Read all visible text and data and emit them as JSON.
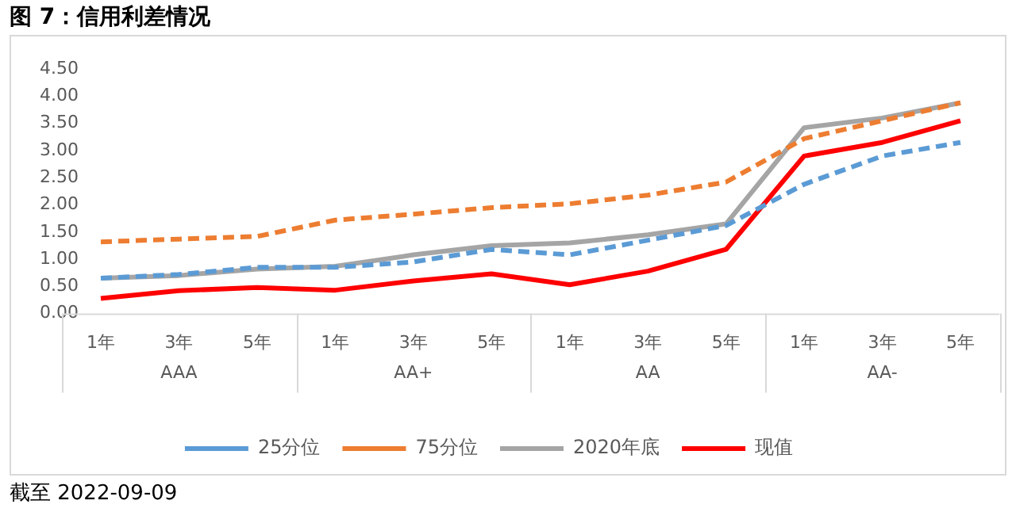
{
  "chart_data": {
    "type": "line",
    "title": "图 7：信用利差情况",
    "categories": [
      "1年",
      "3年",
      "5年",
      "1年",
      "3年",
      "5年",
      "1年",
      "3年",
      "5年",
      "1年",
      "3年",
      "5年"
    ],
    "series": [
      {
        "name": "25分位",
        "color": "#5b9bd5",
        "line_style": "dashed",
        "values": [
          0.65,
          0.72,
          0.85,
          0.85,
          0.95,
          1.18,
          1.08,
          1.35,
          1.62,
          2.38,
          2.9,
          3.15
        ]
      },
      {
        "name": "75分位",
        "color": "#ed7d31",
        "line_style": "dashed",
        "values": [
          1.32,
          1.37,
          1.42,
          1.72,
          1.83,
          1.95,
          2.02,
          2.18,
          2.42,
          3.22,
          3.55,
          3.88
        ]
      },
      {
        "name": "2020年底",
        "color": "#a5a5a5",
        "line_style": "solid",
        "values": [
          0.65,
          0.7,
          0.82,
          0.87,
          1.08,
          1.25,
          1.3,
          1.45,
          1.65,
          3.42,
          3.6,
          3.88
        ]
      },
      {
        "name": "现值",
        "color": "#ff0000",
        "line_style": "solid",
        "values": [
          0.28,
          0.42,
          0.48,
          0.43,
          0.6,
          0.73,
          0.53,
          0.78,
          1.18,
          2.9,
          3.15,
          3.55
        ]
      }
    ],
    "ylim": [
      0,
      4.5
    ],
    "yticks": [
      {
        "value": 0,
        "label": "0.00"
      },
      {
        "value": 0.5,
        "label": "0.50"
      },
      {
        "value": 1,
        "label": "1.00"
      },
      {
        "value": 1.5,
        "label": "1.50"
      },
      {
        "value": 2,
        "label": "2.00"
      },
      {
        "value": 2.5,
        "label": "2.50"
      },
      {
        "value": 3,
        "label": "3.00"
      },
      {
        "value": 3.5,
        "label": "3.50"
      },
      {
        "value": 4,
        "label": "4.00"
      },
      {
        "value": 4.5,
        "label": "4.50"
      }
    ],
    "legend": "bottom",
    "marker": "none",
    "annotations": [
      "AAA",
      "AA+",
      "AA",
      "AA-",
      "截至 2022-09-09"
    ]
  }
}
